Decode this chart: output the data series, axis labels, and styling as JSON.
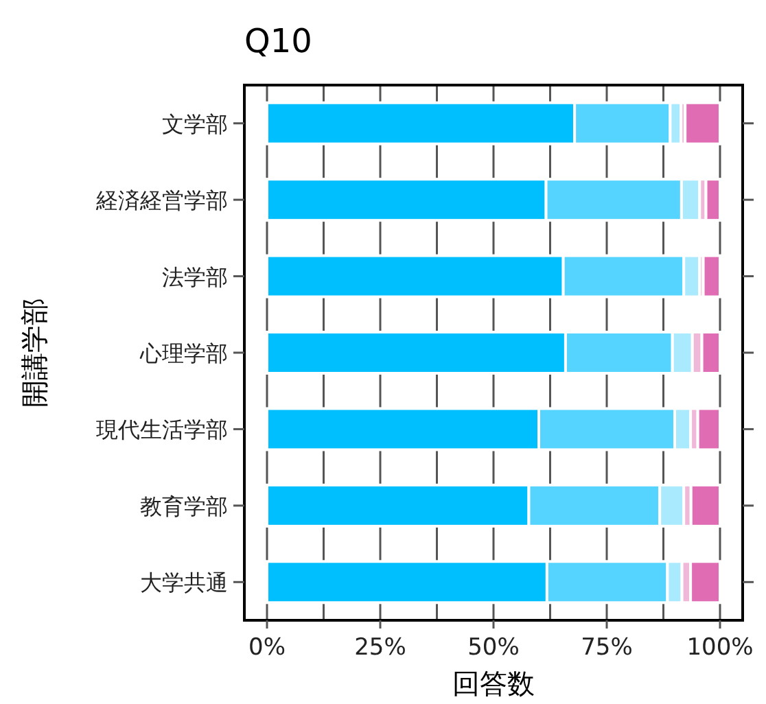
{
  "chart_data": {
    "type": "bar",
    "orientation": "horizontal",
    "stacked": true,
    "title": "Q10",
    "xlabel": "回答数",
    "ylabel": "開講学部",
    "categories": [
      "文学部",
      "経済経営学部",
      "法学部",
      "心理学部",
      "現代生活学部",
      "教育学部",
      "大学共通"
    ],
    "series": [
      {
        "color": "#00bfff",
        "values": [
          67.9,
          61.6,
          65.4,
          65.9,
          60.0,
          57.8,
          61.8
        ]
      },
      {
        "color": "#55d4ff",
        "values": [
          21.1,
          29.9,
          26.6,
          23.6,
          30.0,
          28.9,
          26.6
        ]
      },
      {
        "color": "#aaeaff",
        "values": [
          2.4,
          4.0,
          3.5,
          4.4,
          3.5,
          5.3,
          3.2
        ]
      },
      {
        "color": "#f0b8d8",
        "values": [
          0.9,
          1.4,
          0.8,
          2.1,
          1.6,
          1.6,
          1.9
        ]
      },
      {
        "color": "#e06cb4",
        "values": [
          7.7,
          3.1,
          3.7,
          4.0,
          4.9,
          6.4,
          6.5
        ]
      }
    ],
    "xlim": [
      -5,
      105
    ],
    "xticks": [
      {
        "value": 0,
        "label": "0%"
      },
      {
        "value": 12.5,
        "label": null
      },
      {
        "value": 25,
        "label": "25%"
      },
      {
        "value": 37.5,
        "label": null
      },
      {
        "value": 50,
        "label": "50%"
      },
      {
        "value": 62.5,
        "label": null
      },
      {
        "value": 75,
        "label": "75%"
      },
      {
        "value": 87.5,
        "label": null
      },
      {
        "value": 100,
        "label": "100%"
      }
    ],
    "grid": "x"
  }
}
